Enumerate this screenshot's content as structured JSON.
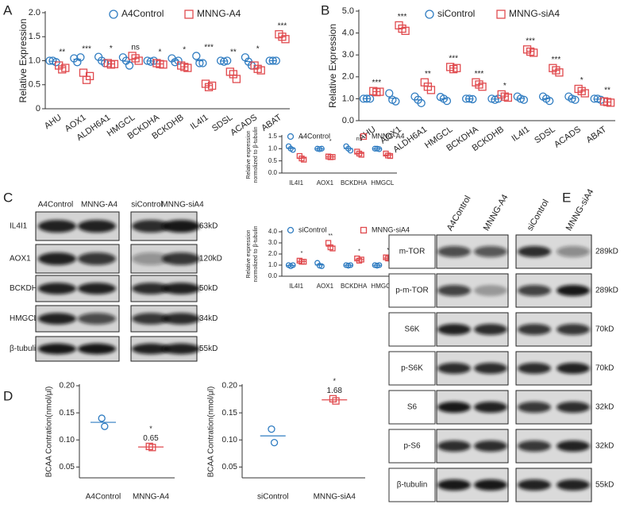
{
  "panel_labels": [
    "A",
    "B",
    "C",
    "D",
    "E"
  ],
  "chart_data": [
    {
      "type": "strip",
      "y_label": "Relative Expression",
      "categories": [
        "AHU",
        "AOX1",
        "ALDH6A1",
        "HMGCL",
        "BCKDHA",
        "BCKDHB",
        "IL4I1",
        "SDSL",
        "ACADS",
        "ABAT"
      ],
      "series": [
        {
          "name": "A4Control",
          "color": "#2f7cc1",
          "values": [
            [
              1.0,
              1.0,
              0.97
            ],
            [
              1.05,
              0.97,
              1.07
            ],
            [
              1.08,
              1.0,
              0.95
            ],
            [
              1.07,
              1.0,
              0.9
            ],
            [
              1.0,
              0.98,
              1.0
            ],
            [
              1.05,
              0.97,
              1.0
            ],
            [
              1.1,
              0.95,
              0.95
            ],
            [
              1.0,
              0.98,
              1.0
            ],
            [
              1.07,
              0.98,
              0.9
            ],
            [
              1.0,
              1.0,
              1.0
            ]
          ]
        },
        {
          "name": "MNNG-A4",
          "color": "#e04a4e",
          "values": [
            [
              0.9,
              0.82,
              0.85
            ],
            [
              0.75,
              0.6,
              0.68
            ],
            [
              0.95,
              0.92,
              0.93
            ],
            [
              1.1,
              1.05,
              1.0
            ],
            [
              0.95,
              0.93,
              0.92
            ],
            [
              0.9,
              0.87,
              0.85
            ],
            [
              0.52,
              0.45,
              0.48
            ],
            [
              0.77,
              0.72,
              0.62
            ],
            [
              0.9,
              0.83,
              0.8
            ],
            [
              1.55,
              1.5,
              1.45
            ]
          ]
        }
      ],
      "significance": [
        "**",
        "***",
        "*",
        "ns",
        "*",
        "*",
        "***",
        "**",
        "*",
        "***"
      ],
      "ylim": [
        0,
        2
      ],
      "yticks": [
        0,
        0.5,
        {
          "value": 1,
          "label": "1.0"
        },
        1.5,
        {
          "value": 2,
          "label": "2.0"
        }
      ]
    },
    {
      "type": "strip",
      "y_label": "Relative Expression",
      "categories": [
        "AHU",
        "AOX1",
        "ALDH6A1",
        "HMGCL",
        "BCKDHA",
        "BCKDHB",
        "IL4I1",
        "SDSL",
        "ACADS",
        "ABAT"
      ],
      "series": [
        {
          "name": "siControl",
          "color": "#2f7cc1",
          "values": [
            [
              1.0,
              1.0,
              1.0
            ],
            [
              1.25,
              0.95,
              0.88
            ],
            [
              1.1,
              0.95,
              0.8
            ],
            [
              1.08,
              1.0,
              0.9
            ],
            [
              1.0,
              1.0,
              0.98
            ],
            [
              1.0,
              0.95,
              1.0
            ],
            [
              1.1,
              1.0,
              0.95
            ],
            [
              1.1,
              1.0,
              0.9
            ],
            [
              1.1,
              1.0,
              0.95
            ],
            [
              1.0,
              1.0,
              0.95
            ]
          ]
        },
        {
          "name": "MNNG-siA4",
          "color": "#e04a4e",
          "values": [
            [
              1.35,
              1.3,
              1.32
            ],
            [
              4.35,
              4.2,
              4.1
            ],
            [
              1.75,
              1.55,
              1.4
            ],
            [
              2.45,
              2.35,
              2.4
            ],
            [
              1.75,
              1.65,
              1.55
            ],
            [
              1.2,
              1.1,
              1.05
            ],
            [
              3.25,
              3.15,
              3.1
            ],
            [
              2.4,
              2.3,
              2.2
            ],
            [
              1.45,
              1.35,
              1.25
            ],
            [
              0.88,
              0.85,
              0.82
            ]
          ]
        }
      ],
      "significance": [
        "***",
        "***",
        "**",
        "***",
        "***",
        "*",
        "***",
        "***",
        "*",
        "**"
      ],
      "ylim": [
        0,
        5
      ],
      "yticks": [
        {
          "value": 0,
          "label": "0.0"
        },
        {
          "value": 1,
          "label": "1.0"
        },
        {
          "value": 2,
          "label": "2.0"
        },
        {
          "value": 3,
          "label": "3.0"
        },
        {
          "value": 4,
          "label": "4.0"
        },
        {
          "value": 5,
          "label": "5.0"
        }
      ]
    },
    {
      "type": "strip",
      "y_label": [
        "Relative expression",
        "normolized to β-tubulin"
      ],
      "categories": [
        "IL4I1",
        "AOX1",
        "BCKDHA",
        "HMGCL"
      ],
      "series": [
        {
          "name": "A4Control",
          "color": "#2f7cc1",
          "values": [
            [
              1.1,
              1.0,
              0.95
            ],
            [
              1.0,
              0.98,
              1.0
            ],
            [
              1.1,
              1.0,
              0.92
            ],
            [
              1.0,
              1.0,
              0.98
            ]
          ]
        },
        {
          "name": "MNNG-A4",
          "color": "#e04a4e",
          "values": [
            [
              0.7,
              0.6,
              0.55
            ],
            [
              0.68,
              0.65,
              0.66
            ],
            [
              0.88,
              0.8,
              0.75
            ],
            [
              0.8,
              0.72,
              0.7
            ]
          ]
        }
      ],
      "significance": [
        "*",
        "*",
        "ns",
        "*"
      ],
      "ylim": [
        0,
        1.5
      ],
      "yticks": [
        {
          "value": 0,
          "label": "0.0"
        },
        0.5,
        {
          "value": 1,
          "label": "1.0"
        },
        1.5
      ]
    },
    {
      "type": "strip",
      "y_label": [
        "Relative expression",
        "normolized to β-tubulin"
      ],
      "categories": [
        "IL4I1",
        "AOX1",
        "BCKDHA",
        "HMGCL"
      ],
      "series": [
        {
          "name": "siControl",
          "color": "#2f7cc1",
          "values": [
            [
              1.0,
              0.9,
              1.0
            ],
            [
              1.2,
              0.95,
              0.9
            ],
            [
              1.0,
              0.95,
              1.0
            ],
            [
              1.0,
              0.95,
              1.0
            ]
          ]
        },
        {
          "name": "MNNG-siA4",
          "color": "#e04a4e",
          "values": [
            [
              1.4,
              1.3,
              1.3
            ],
            [
              3.0,
              2.6,
              2.5
            ],
            [
              1.6,
              1.4,
              1.5
            ],
            [
              1.7,
              1.6,
              1.6
            ]
          ]
        }
      ],
      "significance": [
        "*",
        "**",
        "*",
        "*"
      ],
      "ylim": [
        0,
        4
      ],
      "yticks": [
        {
          "value": 0,
          "label": "0.0"
        },
        {
          "value": 1,
          "label": "1.0"
        },
        {
          "value": 2,
          "label": "2.0"
        },
        {
          "value": 3,
          "label": "3.0"
        },
        {
          "value": 4,
          "label": "4.0"
        }
      ]
    },
    {
      "type": "strip",
      "y_label": "BCAA Contration(nmol/μl)",
      "categories": [
        "A4Control",
        "MNNG-A4"
      ],
      "colors": [
        "#2f7cc1",
        "#e04a4e"
      ],
      "values": [
        [
          0.14,
          0.125
        ],
        [
          0.088,
          0.086
        ]
      ],
      "significance": [
        null,
        "*"
      ],
      "fold_change": [
        null,
        0.65
      ],
      "ylim": [
        0.03,
        0.2
      ],
      "yticks": [
        0.05,
        {
          "value": 0.1,
          "label": "0.10"
        },
        0.15,
        {
          "value": 0.2,
          "label": "0.20"
        }
      ]
    },
    {
      "type": "strip",
      "y_label": "BCAA Contration(nmol/μl)",
      "categories": [
        "siControl",
        "MNNG-siA4"
      ],
      "colors": [
        "#2f7cc1",
        "#e04a4e"
      ],
      "values": [
        [
          0.12,
          0.095
        ],
        [
          0.176,
          0.172
        ]
      ],
      "significance": [
        null,
        "*"
      ],
      "fold_change": [
        null,
        1.68
      ],
      "ylim": [
        0.03,
        0.2
      ],
      "yticks": [
        0.05,
        {
          "value": 0.1,
          "label": "0.10"
        },
        0.15,
        {
          "value": 0.2,
          "label": "0.20"
        }
      ]
    }
  ],
  "blot_c": {
    "samples": [
      "A4Control",
      "MNNG-A4",
      "siControl",
      "MNNG-siA4"
    ],
    "proteins": [
      "IL4I1",
      "AOX1",
      "BCKDHA",
      "HMGCL",
      "β-tubulin"
    ],
    "sizes": [
      "63kD",
      "120kD",
      "50kD",
      "34kD",
      "55kD"
    ]
  },
  "blot_e": {
    "samples": [
      "A4Control",
      "MNNG-A4",
      "siControl",
      "MNNG-siA4"
    ],
    "proteins": [
      "m-TOR",
      "p-m-TOR",
      "S6K",
      "p-S6K",
      "S6",
      "p-S6",
      "β-tubulin"
    ],
    "sizes": [
      "289kD",
      "289kD",
      "70kD",
      "70kD",
      "32kD",
      "32kD",
      "55kD"
    ]
  }
}
